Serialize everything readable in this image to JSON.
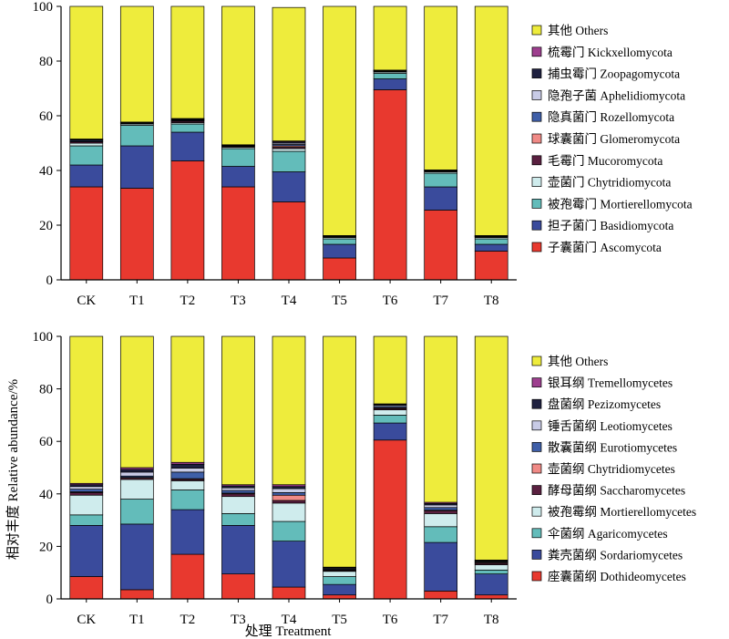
{
  "y_axis_label": "相对丰度 Relative abundance/%",
  "x_axis_label": "处理 Treatment",
  "chart_data": [
    {
      "type": "bar",
      "stacked": true,
      "level": "phylum",
      "ylim": [
        0,
        100
      ],
      "yticks": [
        0,
        20,
        40,
        60,
        80,
        100
      ],
      "grid": false,
      "legend_position": "right",
      "categories": [
        "CK",
        "T1",
        "T2",
        "T3",
        "T4",
        "T5",
        "T6",
        "T7",
        "T8"
      ],
      "series": [
        {
          "name": "子囊菌门 Ascomycota",
          "color": "#e8392f",
          "values": [
            34,
            33.5,
            43.5,
            34,
            28.5,
            8,
            69.5,
            25.5,
            10.5
          ]
        },
        {
          "name": "担子菌门 Basidiomycota",
          "color": "#3a4b9c",
          "values": [
            8,
            15.5,
            10.5,
            7.5,
            11,
            5,
            4,
            8.5,
            2.5
          ]
        },
        {
          "name": "被孢霉门 Mortierellomycota",
          "color": "#63bcba",
          "values": [
            7,
            7.5,
            3,
            6.5,
            7.5,
            2,
            2,
            5,
            2
          ]
        },
        {
          "name": "壶菌门 Chytridiomycota",
          "color": "#cfeced",
          "values": [
            1,
            0.5,
            0.5,
            0.5,
            1,
            0.5,
            0.5,
            0.5,
            0.5
          ]
        },
        {
          "name": "毛霉门 Mucoromycota",
          "color": "#5a2040",
          "values": [
            0.5,
            0.2,
            0.5,
            0.3,
            0.5,
            0.2,
            0.2,
            0.2,
            0.2
          ]
        },
        {
          "name": "球囊菌门 Glomeromycota",
          "color": "#f08a86",
          "values": [
            0.1,
            0.1,
            0.2,
            0.1,
            0.5,
            0.1,
            0.1,
            0.1,
            0.1
          ]
        },
        {
          "name": "隐真菌门 Rozellomycota",
          "color": "#3f5fa8",
          "values": [
            0.4,
            0.1,
            0.3,
            0.2,
            0.5,
            0.1,
            0.1,
            0.1,
            0.1
          ]
        },
        {
          "name": "隐孢子菌 Aphelidiomycota",
          "color": "#c8cbe6",
          "values": [
            0.2,
            0.1,
            0.2,
            0.1,
            0.5,
            0.1,
            0.1,
            0.1,
            0.1
          ]
        },
        {
          "name": "捕虫霉门 Zoopagomycota",
          "color": "#1f2140",
          "values": [
            0.2,
            0.1,
            0.2,
            0.1,
            0.5,
            0.1,
            0.1,
            0.1,
            0.1
          ]
        },
        {
          "name": "梳霉门 Kickxellomycota",
          "color": "#9e3f8f",
          "values": [
            0.1,
            0.1,
            0.1,
            0.1,
            0.3,
            0.1,
            0.1,
            0.1,
            0.1
          ]
        },
        {
          "name": "其他 Others",
          "color": "#eeec3c",
          "values": [
            48.5,
            42.3,
            41.0,
            50.6,
            48.8,
            83.8,
            23.3,
            59.8,
            83.8
          ]
        }
      ]
    },
    {
      "type": "bar",
      "stacked": true,
      "level": "class",
      "ylim": [
        0,
        100
      ],
      "yticks": [
        0,
        20,
        40,
        60,
        80,
        100
      ],
      "grid": false,
      "legend_position": "right",
      "categories": [
        "CK",
        "T1",
        "T2",
        "T3",
        "T4",
        "T5",
        "T6",
        "T7",
        "T8"
      ],
      "series": [
        {
          "name": "座囊菌纲 Dothideomycetes",
          "color": "#e8392f",
          "values": [
            8.5,
            3.5,
            17,
            9.5,
            4.5,
            1.5,
            60.5,
            3,
            1.5
          ]
        },
        {
          "name": "粪壳菌纲 Sordariomycetes",
          "color": "#3a4b9c",
          "values": [
            19.5,
            25,
            17,
            18.5,
            17.5,
            4,
            6.5,
            18.5,
            8
          ]
        },
        {
          "name": "伞菌纲 Agaricomycetes",
          "color": "#63bcba",
          "values": [
            4,
            9.5,
            7.5,
            4.5,
            7.5,
            3,
            3,
            6,
            1.5
          ]
        },
        {
          "name": "被孢霉纲 Mortierellomycetes",
          "color": "#cfeced",
          "values": [
            7.5,
            7.5,
            3.5,
            6.5,
            7,
            2,
            2,
            5,
            2
          ]
        },
        {
          "name": "酵母菌纲 Saccharomycetes",
          "color": "#5a2040",
          "values": [
            1,
            0.5,
            0.5,
            1,
            1,
            0.3,
            0.5,
            1,
            0.5
          ]
        },
        {
          "name": "壶菌纲 Chytridiomycetes",
          "color": "#f08a86",
          "values": [
            0.3,
            0.3,
            0.3,
            0.3,
            2,
            0.3,
            0.3,
            0.3,
            0.3
          ]
        },
        {
          "name": "散囊菌纲 Eurotiomycetes",
          "color": "#3f5fa8",
          "values": [
            1,
            0.5,
            2.5,
            1,
            1,
            0.3,
            0.5,
            1,
            0.3
          ]
        },
        {
          "name": "锤舌菌纲 Leotiomycetes",
          "color": "#c8cbe6",
          "values": [
            1,
            1.5,
            1.5,
            1,
            1.5,
            0.3,
            0.5,
            1,
            0.3
          ]
        },
        {
          "name": "盘菌纲 Pezizomycetes",
          "color": "#1f2140",
          "values": [
            0.7,
            1,
            1.5,
            0.7,
            0.8,
            0.2,
            0.3,
            0.5,
            0.2
          ]
        },
        {
          "name": "银耳纲 Tremellomycetes",
          "color": "#9e3f8f",
          "values": [
            0.5,
            0.7,
            0.7,
            0.5,
            0.7,
            0.2,
            0.2,
            0.5,
            0.2
          ]
        },
        {
          "name": "其他 Others",
          "color": "#eeec3c",
          "values": [
            56.0,
            50.0,
            48.0,
            56.5,
            56.5,
            87.9,
            25.7,
            63.2,
            85.2
          ]
        }
      ]
    }
  ]
}
